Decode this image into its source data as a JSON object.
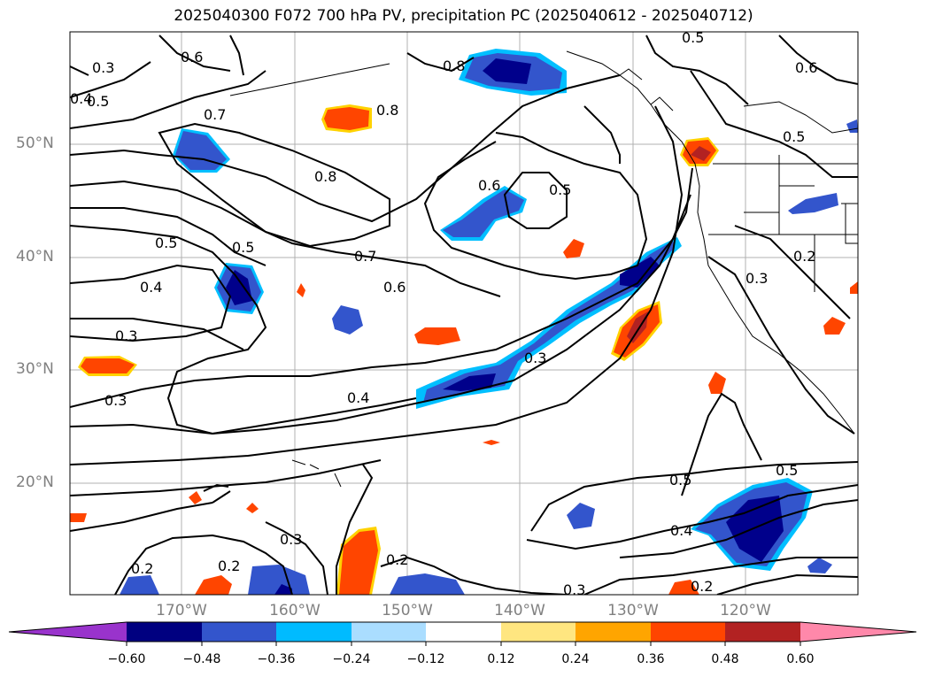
{
  "title": "2025040300 F072 700 hPa PV, precipitation PC (2025040612 - 2025040712)",
  "map": {
    "lat_labels": [
      "50°N",
      "40°N",
      "30°N",
      "20°N"
    ],
    "lon_labels": [
      "170°W",
      "160°W",
      "150°W",
      "140°W",
      "130°W",
      "120°W"
    ],
    "contour_labels": [
      "0.3",
      "0.4",
      "0.5",
      "0.6",
      "0.7",
      "0.8",
      "0.8",
      "0.8",
      "0.5",
      "0.5",
      "0.4",
      "0.3",
      "0.3",
      "0.7",
      "0.6",
      "0.6",
      "0.5",
      "0.3",
      "0.4",
      "0.5",
      "0.4",
      "0.2",
      "0.3",
      "0.2",
      "0.2",
      "0.3",
      "0.2",
      "0.5",
      "0.6",
      "0.5",
      "0.2",
      "0.3",
      "0.5"
    ]
  },
  "colorbar": {
    "ticks": [
      "−0.60",
      "−0.48",
      "−0.36",
      "−0.24",
      "−0.12",
      "0.12",
      "0.24",
      "0.36",
      "0.48",
      "0.60"
    ],
    "colors": [
      "#9933cc",
      "#000080",
      "#3355cc",
      "#00bbff",
      "#aaddff",
      "#ffffff",
      "#ffe680",
      "#ffa500",
      "#ff4500",
      "#b22222",
      "#ff88aa"
    ]
  },
  "colors": {
    "neg_dark": "#00008b",
    "neg_mid": "#3355cc",
    "neg_light": "#00bfff",
    "pos_light": "#ffd200",
    "pos_mid": "#ff4500",
    "pos_dark": "#b22222"
  }
}
